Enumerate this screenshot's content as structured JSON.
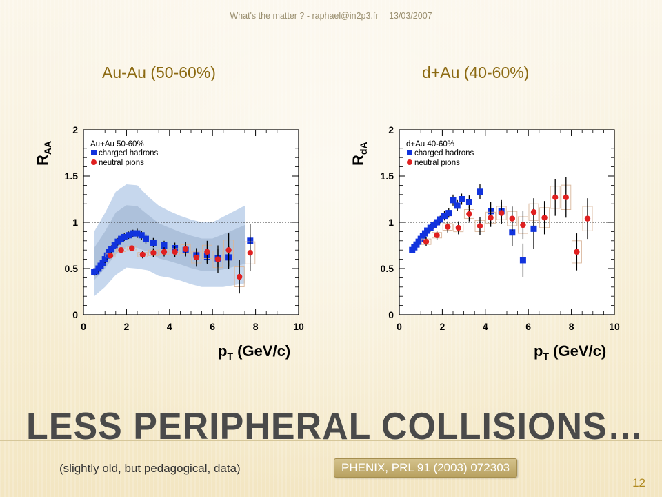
{
  "header": {
    "left": "What's the matter ? - raphael@in2p3.fr",
    "date": "13/03/2007"
  },
  "slide": {
    "subtitle_left": "Au-Au (50-60%)",
    "subtitle_right": "d+Au (40-60%)",
    "title": "Less peripheral collisions…",
    "note": "(slightly old, but pedagogical, data)",
    "reference": "PHENIX, PRL 91 (2003) 072303",
    "page_number": "12"
  },
  "colors": {
    "accent": "#8c6a12",
    "charged_hadrons": "#1133dd",
    "neutral_pions": "#e02020",
    "band": "#bcd0ea",
    "band_inner": "#9db2cf"
  },
  "chart_data": [
    {
      "type": "scatter",
      "ylabel_main": "R",
      "ylabel_sub": "AA",
      "xlabel_main": "p",
      "xlabel_sub": "T",
      "xlabel_unit": " (GeV/c)",
      "xlim": [
        0,
        10
      ],
      "ylim": [
        0,
        2
      ],
      "xticks": [
        "0",
        "2",
        "4",
        "6",
        "8",
        "10"
      ],
      "yticks": [
        "0",
        "0.5",
        "1",
        "1.5",
        "2"
      ],
      "reference_line": 1,
      "legend": {
        "title": "Au+Au 50-60%",
        "entries": [
          "charged hadrons",
          "neutral pions"
        ]
      },
      "band": [
        [
          0.5,
          0.55,
          0.35
        ],
        [
          1.0,
          0.7,
          0.4
        ],
        [
          1.5,
          0.88,
          0.45
        ],
        [
          2.0,
          0.96,
          0.45
        ],
        [
          2.5,
          0.95,
          0.45
        ],
        [
          3.0,
          0.88,
          0.4
        ],
        [
          3.5,
          0.8,
          0.38
        ],
        [
          4.0,
          0.76,
          0.36
        ],
        [
          4.5,
          0.72,
          0.35
        ],
        [
          5.0,
          0.68,
          0.35
        ],
        [
          5.5,
          0.65,
          0.35
        ],
        [
          6.0,
          0.65,
          0.35
        ],
        [
          6.5,
          0.68,
          0.38
        ],
        [
          7.0,
          0.72,
          0.4
        ],
        [
          7.5,
          0.76,
          0.42
        ]
      ],
      "series": [
        {
          "name": "charged hadrons",
          "points": [
            [
              0.5,
              0.46,
              0.04
            ],
            [
              0.6,
              0.47,
              0.04
            ],
            [
              0.7,
              0.5,
              0.04
            ],
            [
              0.8,
              0.53,
              0.04
            ],
            [
              0.9,
              0.56,
              0.04
            ],
            [
              1.0,
              0.6,
              0.04
            ],
            [
              1.1,
              0.64,
              0.04
            ],
            [
              1.2,
              0.68,
              0.04
            ],
            [
              1.3,
              0.71,
              0.04
            ],
            [
              1.45,
              0.75,
              0.04
            ],
            [
              1.6,
              0.79,
              0.04
            ],
            [
              1.75,
              0.82,
              0.04
            ],
            [
              1.9,
              0.84,
              0.04
            ],
            [
              2.1,
              0.86,
              0.04
            ],
            [
              2.3,
              0.88,
              0.04
            ],
            [
              2.5,
              0.88,
              0.05
            ],
            [
              2.7,
              0.86,
              0.05
            ],
            [
              2.9,
              0.82,
              0.05
            ],
            [
              3.25,
              0.78,
              0.05
            ],
            [
              3.75,
              0.75,
              0.05
            ],
            [
              4.25,
              0.72,
              0.06
            ],
            [
              4.75,
              0.7,
              0.06
            ],
            [
              5.25,
              0.65,
              0.07
            ],
            [
              5.75,
              0.63,
              0.08
            ],
            [
              6.25,
              0.61,
              0.1
            ],
            [
              6.75,
              0.62,
              0.12
            ],
            [
              7.75,
              0.8,
              0.18
            ]
          ]
        },
        {
          "name": "neutral pions",
          "points": [
            [
              1.25,
              0.64,
              0.03
            ],
            [
              1.75,
              0.7,
              0.03
            ],
            [
              2.25,
              0.72,
              0.03
            ],
            [
              2.75,
              0.65,
              0.04
            ],
            [
              3.25,
              0.67,
              0.05
            ],
            [
              3.75,
              0.68,
              0.05
            ],
            [
              4.25,
              0.68,
              0.06
            ],
            [
              4.75,
              0.71,
              0.08
            ],
            [
              5.25,
              0.62,
              0.1
            ],
            [
              5.75,
              0.68,
              0.12
            ],
            [
              6.25,
              0.6,
              0.15
            ],
            [
              6.75,
              0.7,
              0.18
            ],
            [
              7.25,
              0.41,
              0.18
            ],
            [
              7.75,
              0.67,
              0.2
            ]
          ]
        }
      ]
    },
    {
      "type": "scatter",
      "ylabel_main": "R",
      "ylabel_sub": "dA",
      "xlabel_main": "p",
      "xlabel_sub": "T",
      "xlabel_unit": " (GeV/c)",
      "xlim": [
        0,
        10
      ],
      "ylim": [
        0,
        2
      ],
      "xticks": [
        "0",
        "2",
        "4",
        "6",
        "8",
        "10"
      ],
      "yticks": [
        "0",
        "0.5",
        "1",
        "1.5",
        "2"
      ],
      "reference_line": 1,
      "legend": {
        "title": "d+Au 40-60%",
        "entries": [
          "charged hadrons",
          "neutral pions"
        ]
      },
      "band": [],
      "series": [
        {
          "name": "charged hadrons",
          "points": [
            [
              0.6,
              0.7,
              0.03
            ],
            [
              0.7,
              0.73,
              0.03
            ],
            [
              0.8,
              0.76,
              0.03
            ],
            [
              0.9,
              0.79,
              0.03
            ],
            [
              1.0,
              0.82,
              0.03
            ],
            [
              1.1,
              0.85,
              0.03
            ],
            [
              1.2,
              0.88,
              0.03
            ],
            [
              1.3,
              0.91,
              0.03
            ],
            [
              1.45,
              0.94,
              0.04
            ],
            [
              1.6,
              0.97,
              0.04
            ],
            [
              1.75,
              1.0,
              0.04
            ],
            [
              1.9,
              1.03,
              0.04
            ],
            [
              2.1,
              1.07,
              0.05
            ],
            [
              2.3,
              1.1,
              0.05
            ],
            [
              2.5,
              1.24,
              0.06
            ],
            [
              2.7,
              1.18,
              0.06
            ],
            [
              2.9,
              1.25,
              0.06
            ],
            [
              3.25,
              1.22,
              0.07
            ],
            [
              3.75,
              1.33,
              0.08
            ],
            [
              4.25,
              1.12,
              0.1
            ],
            [
              4.75,
              1.12,
              0.12
            ],
            [
              5.25,
              0.89,
              0.15
            ],
            [
              5.75,
              0.59,
              0.18
            ],
            [
              6.25,
              0.93,
              0.22
            ]
          ]
        },
        {
          "name": "neutral pions",
          "points": [
            [
              1.25,
              0.79,
              0.05
            ],
            [
              1.75,
              0.86,
              0.05
            ],
            [
              2.25,
              0.95,
              0.06
            ],
            [
              2.75,
              0.94,
              0.07
            ],
            [
              3.25,
              1.09,
              0.08
            ],
            [
              3.75,
              0.96,
              0.1
            ],
            [
              4.25,
              1.05,
              0.1
            ],
            [
              4.75,
              1.1,
              0.12
            ],
            [
              5.25,
              1.04,
              0.13
            ],
            [
              5.75,
              0.97,
              0.15
            ],
            [
              6.25,
              1.11,
              0.15
            ],
            [
              6.75,
              1.05,
              0.18
            ],
            [
              7.25,
              1.27,
              0.2
            ],
            [
              7.75,
              1.27,
              0.22
            ],
            [
              8.25,
              0.68,
              0.2
            ],
            [
              8.75,
              1.04,
              0.22
            ]
          ]
        }
      ]
    }
  ]
}
